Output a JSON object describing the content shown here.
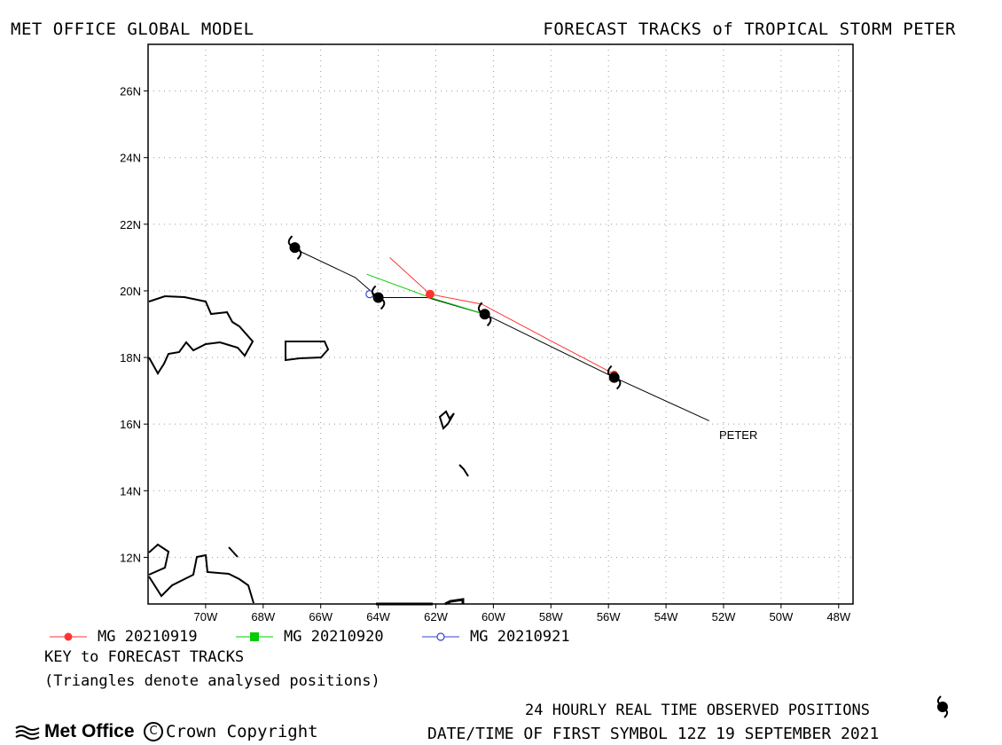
{
  "header": {
    "left_title": "MET OFFICE GLOBAL MODEL",
    "right_title": "FORECAST TRACKS of TROPICAL STORM PETER"
  },
  "map": {
    "lon_range": [
      -72,
      -47.5
    ],
    "lat_range": [
      10.6,
      27.4
    ],
    "lon_ticks": [
      "70W",
      "68W",
      "66W",
      "64W",
      "62W",
      "60W",
      "58W",
      "56W",
      "54W",
      "52W",
      "50W",
      "48W"
    ],
    "lat_ticks": [
      "12N",
      "14N",
      "16N",
      "18N",
      "20N",
      "22N",
      "24N",
      "26N"
    ],
    "storm_label": "PETER",
    "observed_track": [
      [
        -52.5,
        16.1
      ],
      [
        -55.8,
        17.4
      ],
      [
        -60.3,
        19.3
      ],
      [
        -62.3,
        19.8
      ],
      [
        -64.0,
        19.8
      ],
      [
        -64.8,
        20.4
      ],
      [
        -67.0,
        21.3
      ]
    ],
    "observed_symbols": [
      [
        -55.8,
        17.4
      ],
      [
        -60.3,
        19.3
      ],
      [
        -64.0,
        19.8
      ],
      [
        -66.9,
        21.3
      ]
    ],
    "forecast_tracks": [
      {
        "name": "MG 20210919",
        "color": "#ff3333",
        "points": [
          [
            -55.8,
            17.5
          ],
          [
            -58.0,
            18.5
          ],
          [
            -60.4,
            19.6
          ],
          [
            -62.2,
            19.9
          ],
          [
            -63.6,
            21.0
          ]
        ]
      },
      {
        "name": "MG 20210920",
        "color": "#00cc00",
        "points": [
          [
            -60.3,
            19.3
          ],
          [
            -62.2,
            19.8
          ],
          [
            -64.4,
            20.5
          ]
        ]
      },
      {
        "name": "MG 20210921",
        "color": "#3344cc",
        "points": [
          [
            -64.0,
            19.8
          ],
          [
            -64.3,
            19.9
          ]
        ]
      }
    ]
  },
  "legend": {
    "items": [
      {
        "label": "MG 20210919",
        "color": "#ff3333",
        "marker": "filled-circle"
      },
      {
        "label": "MG 20210920",
        "color": "#00cc00",
        "marker": "filled-square"
      },
      {
        "label": "MG 20210921",
        "color": "#3344cc",
        "marker": "open-circle"
      }
    ],
    "key_title": "KEY to FORECAST TRACKS",
    "key_note": "(Triangles denote analysed positions)"
  },
  "footer": {
    "observed_note": "24 HOURLY REAL TIME OBSERVED POSITIONS",
    "first_symbol": "DATE/TIME OF FIRST SYMBOL 12Z 19 SEPTEMBER 2021",
    "logo_text": "Met Office",
    "copyright": "Crown Copyright"
  }
}
